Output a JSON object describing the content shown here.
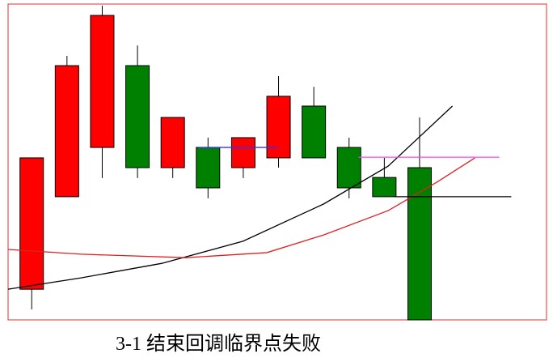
{
  "chart_data": {
    "type": "candlestick",
    "caption": "3-1 结束回调临界点失败",
    "xlim": [
      -0.67,
      14.6
    ],
    "ylim": [
      0,
      100
    ],
    "up_color": "#ff0000",
    "down_color": "#008000",
    "frame_color": "#e03030",
    "open": [
      9.7,
      39.0,
      54.6,
      80.5,
      48.2,
      54.6,
      48.2,
      51.3,
      67.7,
      54.6,
      45.1,
      48.2
    ],
    "high": [
      51.3,
      83.6,
      99.5,
      86.9,
      64.1,
      57.7,
      57.7,
      77.2,
      73.8,
      57.7,
      51.3,
      64.1
    ],
    "low": [
      3.3,
      39.0,
      44.9,
      44.9,
      44.9,
      38.5,
      44.9,
      48.2,
      51.3,
      38.5,
      39.0,
      0
    ],
    "close": [
      51.3,
      80.5,
      96.4,
      48.2,
      64.1,
      41.8,
      57.7,
      70.8,
      51.3,
      41.8,
      39.0,
      0
    ],
    "lines": [
      {
        "color": "#000000",
        "x": [
          -0.67,
          1.4,
          3.69,
          5.99,
          8.28,
          10.11,
          11.93
        ],
        "values": [
          9.7,
          13.3,
          17.9,
          24.9,
          36.7,
          48.7,
          67.7
        ]
      },
      {
        "color": "#e02020",
        "x": [
          -0.67,
          1.4,
          4.38,
          6.67,
          8.28,
          10.11,
          11.49,
          12.57
        ],
        "values": [
          22.3,
          20.8,
          19.7,
          21.3,
          26.9,
          34.6,
          43.6,
          51.3
        ]
      },
      {
        "color": "#3030ff",
        "x": [
          4.73,
          6.97
        ],
        "values": [
          54.6,
          54.6
        ]
      },
      {
        "color": "#ff40ff",
        "x": [
          9.27,
          13.26
        ],
        "values": [
          51.5,
          51.5
        ]
      },
      {
        "color": "#000000",
        "x": [
          10.28,
          13.6
        ],
        "values": [
          39.0,
          39.0
        ]
      }
    ]
  }
}
